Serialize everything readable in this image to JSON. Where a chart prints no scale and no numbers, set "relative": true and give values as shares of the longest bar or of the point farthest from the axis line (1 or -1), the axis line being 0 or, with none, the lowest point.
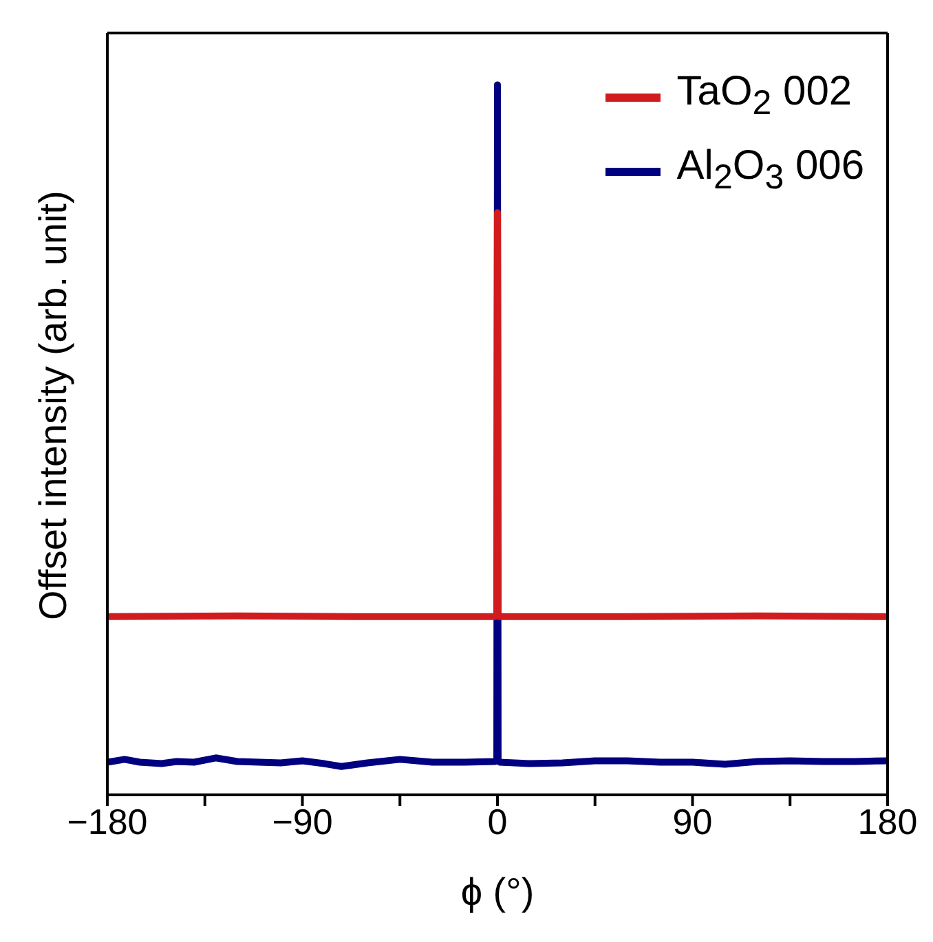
{
  "chart_data": {
    "type": "line",
    "relative": true,
    "xlabel": "ϕ (°)",
    "ylabel": "Offset intensity (arb. unit)",
    "xlim": [
      -180,
      180
    ],
    "xticks": [
      -180,
      {
        "value": -135,
        "label": null
      },
      -90,
      {
        "value": -45,
        "label": null
      },
      0,
      {
        "value": 45,
        "label": null
      },
      90,
      {
        "value": 135,
        "label": null
      },
      180
    ],
    "legend": "top right",
    "line_style": "solid",
    "marker": "none",
    "series": [
      {
        "name": "TaO$_{2}$ 002",
        "color": "#d01c1f",
        "x": [
          -180,
          -120,
          -60,
          -1,
          -0.3,
          0,
          0.3,
          1,
          60,
          120,
          180
        ],
        "values": [
          0.251,
          0.252,
          0.251,
          0.251,
          0.252,
          0.82,
          0.252,
          0.251,
          0.251,
          0.252,
          0.251
        ]
      },
      {
        "name": "Al$_{2}$O$_{3}$ 006",
        "color": "#000080",
        "x": [
          -180,
          -172,
          -165,
          -155,
          -148,
          -140,
          -130,
          -120,
          -110,
          -100,
          -90,
          -80,
          -72,
          -60,
          -45,
          -30,
          -15,
          -1,
          -0.3,
          0,
          0.3,
          1,
          15,
          30,
          45,
          60,
          75,
          90,
          105,
          120,
          135,
          150,
          165,
          180
        ],
        "values": [
          0.046,
          0.05,
          0.046,
          0.044,
          0.047,
          0.046,
          0.052,
          0.047,
          0.046,
          0.045,
          0.048,
          0.044,
          0.04,
          0.045,
          0.05,
          0.046,
          0.046,
          0.047,
          0.05,
          1,
          0.05,
          0.046,
          0.044,
          0.045,
          0.048,
          0.048,
          0.046,
          0.046,
          0.043,
          0.047,
          0.048,
          0.047,
          0.047,
          0.048
        ]
      }
    ]
  }
}
